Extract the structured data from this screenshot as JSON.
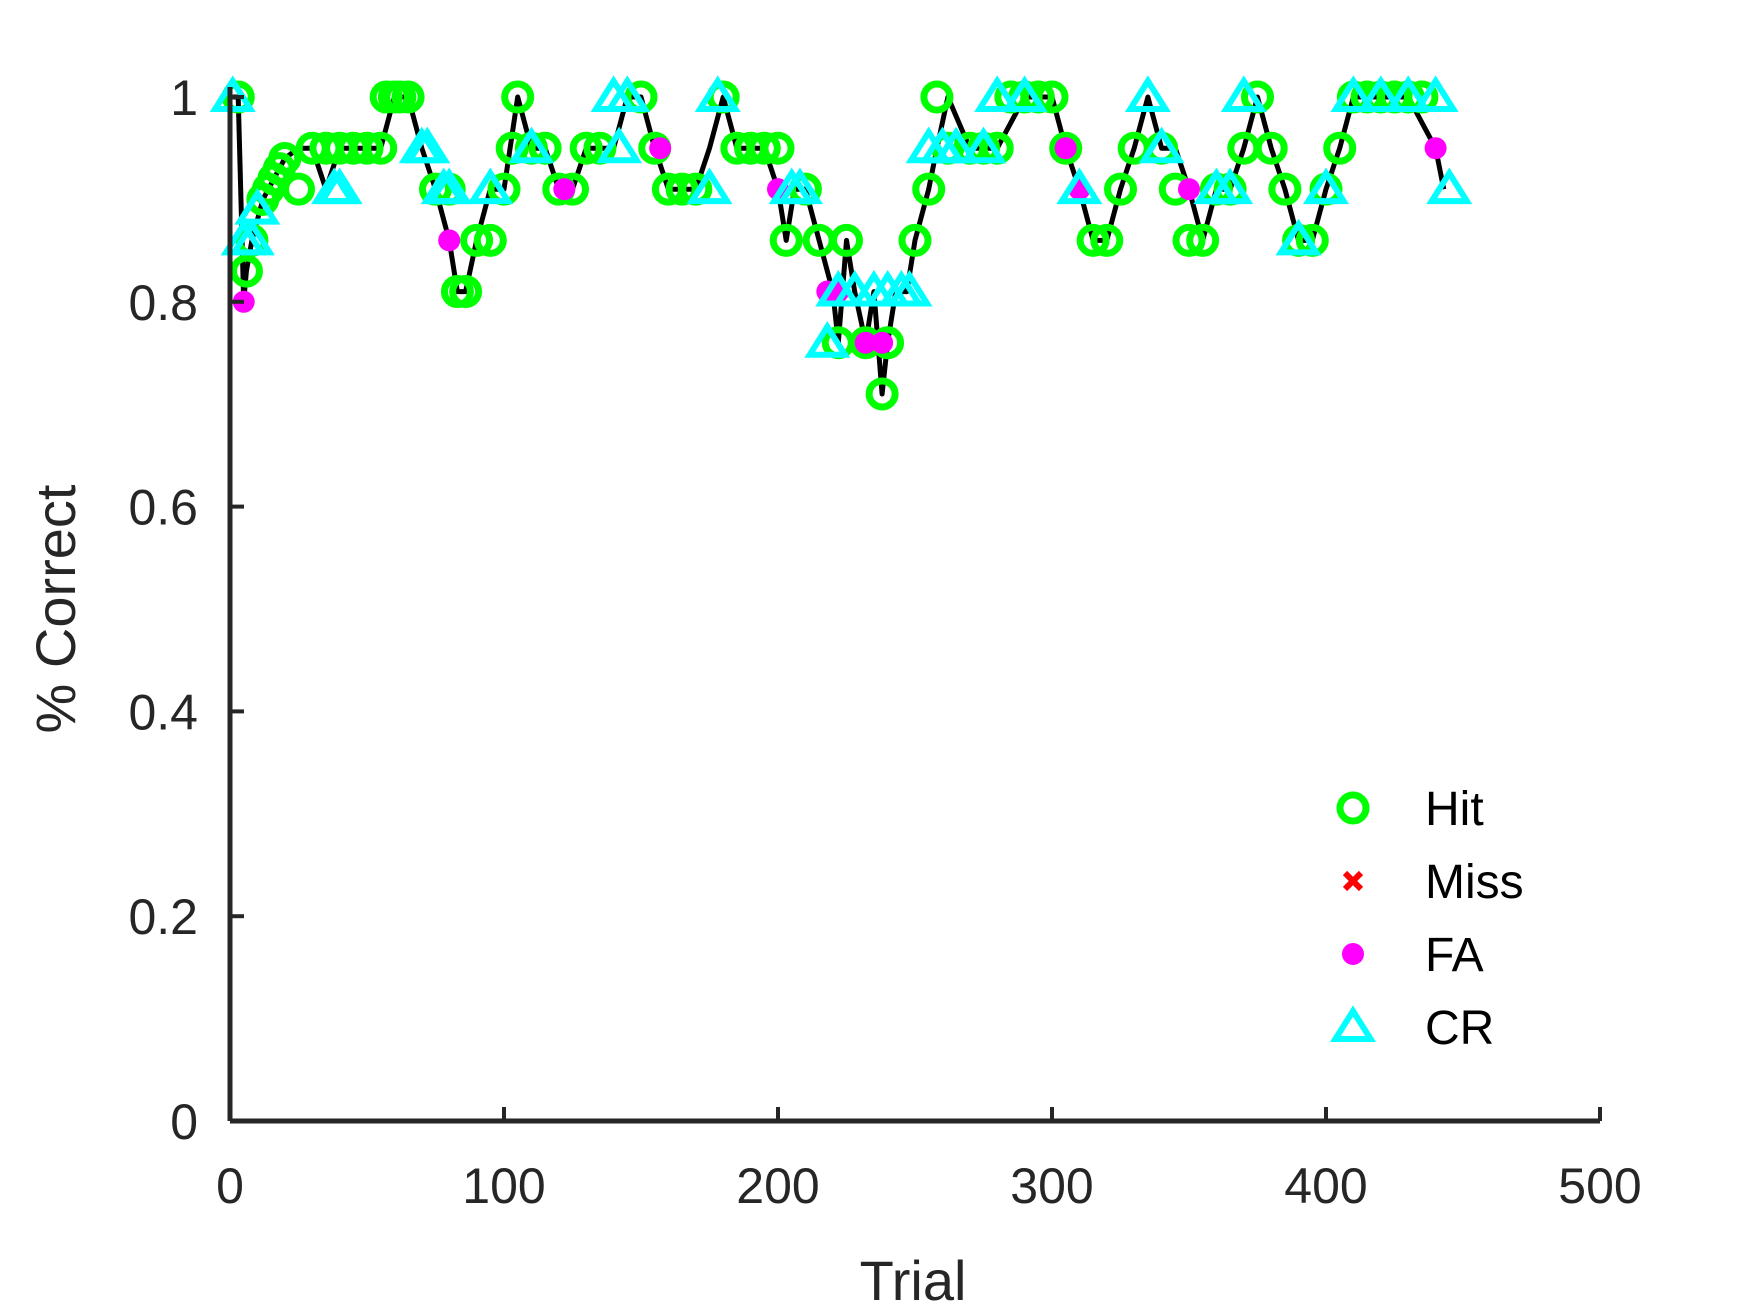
{
  "chart_data": {
    "type": "scatter",
    "title": "",
    "xlabel": "Trial",
    "ylabel": "% Correct",
    "xlim": [
      0,
      500
    ],
    "ylim": [
      0,
      1
    ],
    "xticks": [
      0,
      100,
      200,
      300,
      400,
      500
    ],
    "xtick_labels": [
      "0",
      "100",
      "200",
      "300",
      "400",
      "500"
    ],
    "yticks": [
      0,
      0.2,
      0.4,
      0.6,
      0.8,
      1
    ],
    "ytick_labels": [
      "0",
      "0.2",
      "0.4",
      "0.6",
      "0.8",
      "1"
    ],
    "grid": false,
    "legend_position": "bottom-right",
    "line": {
      "color": "#000000",
      "x": [
        1,
        3,
        5,
        6,
        8,
        10,
        12,
        14,
        16,
        18,
        20,
        25,
        30,
        35,
        40,
        45,
        50,
        55,
        60,
        65,
        70,
        75,
        80,
        83,
        86,
        90,
        95,
        100,
        105,
        110,
        115,
        120,
        125,
        130,
        135,
        140,
        145,
        150,
        155,
        160,
        165,
        170,
        175,
        180,
        185,
        190,
        195,
        200,
        203,
        206,
        210,
        215,
        220,
        222,
        225,
        228,
        232,
        235,
        238,
        240,
        243,
        247,
        250,
        255,
        258,
        262,
        270,
        280,
        290,
        300,
        305,
        310,
        315,
        320,
        325,
        330,
        335,
        340,
        345,
        350,
        355,
        360,
        365,
        370,
        375,
        380,
        385,
        390,
        395,
        400,
        405,
        410,
        420,
        430,
        440,
        443
      ],
      "y": [
        1.0,
        1.0,
        0.8,
        0.83,
        0.86,
        0.88,
        0.9,
        0.91,
        0.92,
        0.93,
        0.94,
        0.95,
        0.95,
        0.91,
        0.95,
        0.95,
        0.95,
        0.95,
        1.0,
        1.0,
        0.95,
        0.91,
        0.86,
        0.81,
        0.81,
        0.86,
        0.91,
        0.91,
        1.0,
        0.95,
        0.95,
        0.91,
        0.91,
        0.95,
        0.95,
        0.95,
        1.0,
        1.0,
        0.95,
        0.91,
        0.91,
        0.91,
        0.95,
        1.0,
        0.95,
        0.95,
        0.95,
        0.91,
        0.86,
        0.91,
        0.91,
        0.86,
        0.81,
        0.76,
        0.86,
        0.81,
        0.76,
        0.81,
        0.71,
        0.76,
        0.81,
        0.81,
        0.86,
        0.91,
        0.95,
        1.0,
        0.95,
        0.95,
        1.0,
        1.0,
        0.95,
        0.91,
        0.86,
        0.86,
        0.91,
        0.95,
        1.0,
        0.95,
        0.95,
        0.91,
        0.86,
        0.91,
        0.91,
        0.95,
        1.0,
        0.95,
        0.91,
        0.86,
        0.86,
        0.91,
        0.95,
        1.0,
        1.0,
        1.0,
        0.95,
        0.91
      ]
    },
    "series": [
      {
        "name": "Hit",
        "marker": "circle-open",
        "color": "#00ff00",
        "x": [
          3,
          6,
          8,
          12,
          14,
          16,
          18,
          20,
          25,
          30,
          35,
          40,
          45,
          50,
          55,
          57,
          60,
          62,
          65,
          75,
          80,
          83,
          86,
          90,
          95,
          100,
          103,
          105,
          110,
          115,
          120,
          125,
          130,
          135,
          150,
          155,
          160,
          165,
          170,
          180,
          185,
          190,
          195,
          200,
          203,
          210,
          215,
          222,
          225,
          232,
          238,
          240,
          250,
          255,
          258,
          262,
          270,
          275,
          280,
          285,
          290,
          295,
          300,
          305,
          315,
          320,
          325,
          330,
          340,
          345,
          350,
          355,
          360,
          365,
          370,
          375,
          380,
          385,
          390,
          395,
          400,
          405,
          410,
          415,
          420,
          425,
          430,
          435
        ],
        "y": [
          1.0,
          0.83,
          0.86,
          0.9,
          0.91,
          0.92,
          0.93,
          0.94,
          0.91,
          0.95,
          0.95,
          0.95,
          0.95,
          0.95,
          0.95,
          1.0,
          1.0,
          1.0,
          1.0,
          0.91,
          0.91,
          0.81,
          0.81,
          0.86,
          0.86,
          0.91,
          0.95,
          1.0,
          0.95,
          0.95,
          0.91,
          0.91,
          0.95,
          0.95,
          1.0,
          0.95,
          0.91,
          0.91,
          0.91,
          1.0,
          0.95,
          0.95,
          0.95,
          0.95,
          0.86,
          0.91,
          0.86,
          0.76,
          0.86,
          0.76,
          0.71,
          0.76,
          0.86,
          0.91,
          1.0,
          0.95,
          0.95,
          0.95,
          0.95,
          1.0,
          1.0,
          1.0,
          1.0,
          0.95,
          0.86,
          0.86,
          0.91,
          0.95,
          0.95,
          0.91,
          0.86,
          0.86,
          0.91,
          0.91,
          0.95,
          1.0,
          0.95,
          0.91,
          0.86,
          0.86,
          0.91,
          0.95,
          1.0,
          1.0,
          1.0,
          1.0,
          1.0,
          1.0
        ]
      },
      {
        "name": "Miss",
        "marker": "x",
        "color": "#ff0000",
        "x": [],
        "y": []
      },
      {
        "name": "FA",
        "marker": "dot",
        "color": "#ff00ff",
        "x": [
          5,
          80,
          122,
          157,
          200,
          218,
          222,
          232,
          238,
          305,
          310,
          350,
          440
        ],
        "y": [
          0.8,
          0.86,
          0.91,
          0.95,
          0.91,
          0.81,
          0.81,
          0.76,
          0.76,
          0.95,
          0.91,
          0.91,
          0.95
        ]
      },
      {
        "name": "CR",
        "marker": "triangle-open",
        "color": "#00ffff",
        "x": [
          1,
          5,
          8,
          10,
          38,
          40,
          70,
          72,
          78,
          80,
          95,
          110,
          140,
          142,
          145,
          175,
          178,
          205,
          208,
          218,
          222,
          228,
          235,
          240,
          245,
          248,
          255,
          260,
          265,
          275,
          280,
          290,
          310,
          335,
          340,
          360,
          365,
          370,
          390,
          400,
          410,
          420,
          430,
          440,
          445
        ],
        "y": [
          1.0,
          0.86,
          0.86,
          0.89,
          0.91,
          0.91,
          0.95,
          0.95,
          0.91,
          0.91,
          0.91,
          0.95,
          1.0,
          0.95,
          1.0,
          0.91,
          1.0,
          0.91,
          0.91,
          0.76,
          0.81,
          0.81,
          0.81,
          0.81,
          0.81,
          0.81,
          0.95,
          0.95,
          0.95,
          0.95,
          1.0,
          1.0,
          0.91,
          1.0,
          0.95,
          0.91,
          0.91,
          1.0,
          0.86,
          0.91,
          1.0,
          1.0,
          1.0,
          1.0,
          0.91
        ]
      }
    ]
  }
}
